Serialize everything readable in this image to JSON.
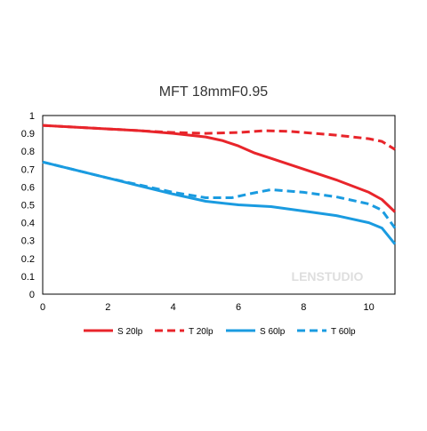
{
  "chart_data": {
    "type": "line",
    "title": "MFT 18mmF0.95",
    "xlabel": "",
    "ylabel": "",
    "xlim": [
      0,
      10.8
    ],
    "ylim": [
      0,
      1
    ],
    "x_ticks": [
      "0",
      "2",
      "4",
      "6",
      "8",
      "10"
    ],
    "y_ticks": [
      "0",
      "0.1",
      "0.2",
      "0.3",
      "0.4",
      "0.5",
      "0.6",
      "0.7",
      "0.8",
      "0.9",
      "1"
    ],
    "grid": false,
    "legend_position": "bottom",
    "watermark": "LENSTUDIO",
    "series": [
      {
        "name": "S 20lp",
        "color": "#e8252b",
        "dash": "solid",
        "points": [
          [
            0,
            0.945
          ],
          [
            1,
            0.935
          ],
          [
            2,
            0.925
          ],
          [
            3,
            0.915
          ],
          [
            4,
            0.9
          ],
          [
            5,
            0.88
          ],
          [
            5.5,
            0.86
          ],
          [
            6,
            0.83
          ],
          [
            6.5,
            0.79
          ],
          [
            7,
            0.76
          ],
          [
            8,
            0.7
          ],
          [
            9,
            0.64
          ],
          [
            10,
            0.57
          ],
          [
            10.4,
            0.53
          ],
          [
            10.8,
            0.46
          ]
        ]
      },
      {
        "name": "T 20lp",
        "color": "#e8252b",
        "dash": "dashed",
        "points": [
          [
            0,
            0.945
          ],
          [
            1,
            0.935
          ],
          [
            2,
            0.925
          ],
          [
            3,
            0.915
          ],
          [
            4,
            0.905
          ],
          [
            5,
            0.9
          ],
          [
            6,
            0.905
          ],
          [
            6.8,
            0.915
          ],
          [
            7.5,
            0.912
          ],
          [
            8,
            0.905
          ],
          [
            9,
            0.89
          ],
          [
            10,
            0.87
          ],
          [
            10.4,
            0.855
          ],
          [
            10.8,
            0.81
          ]
        ]
      },
      {
        "name": "S 60lp",
        "color": "#1a9be0",
        "dash": "solid",
        "points": [
          [
            0,
            0.74
          ],
          [
            1,
            0.695
          ],
          [
            2,
            0.65
          ],
          [
            3,
            0.605
          ],
          [
            4,
            0.56
          ],
          [
            5,
            0.52
          ],
          [
            6,
            0.5
          ],
          [
            6.5,
            0.495
          ],
          [
            7,
            0.49
          ],
          [
            8,
            0.465
          ],
          [
            9,
            0.44
          ],
          [
            10,
            0.4
          ],
          [
            10.4,
            0.37
          ],
          [
            10.8,
            0.28
          ]
        ]
      },
      {
        "name": "T 60lp",
        "color": "#1a9be0",
        "dash": "dashed",
        "points": [
          [
            0,
            0.74
          ],
          [
            1,
            0.695
          ],
          [
            2,
            0.65
          ],
          [
            3,
            0.61
          ],
          [
            4,
            0.57
          ],
          [
            5,
            0.54
          ],
          [
            5.8,
            0.54
          ],
          [
            6.3,
            0.56
          ],
          [
            7,
            0.585
          ],
          [
            8,
            0.57
          ],
          [
            9,
            0.545
          ],
          [
            10,
            0.505
          ],
          [
            10.4,
            0.47
          ],
          [
            10.8,
            0.37
          ]
        ]
      }
    ]
  }
}
